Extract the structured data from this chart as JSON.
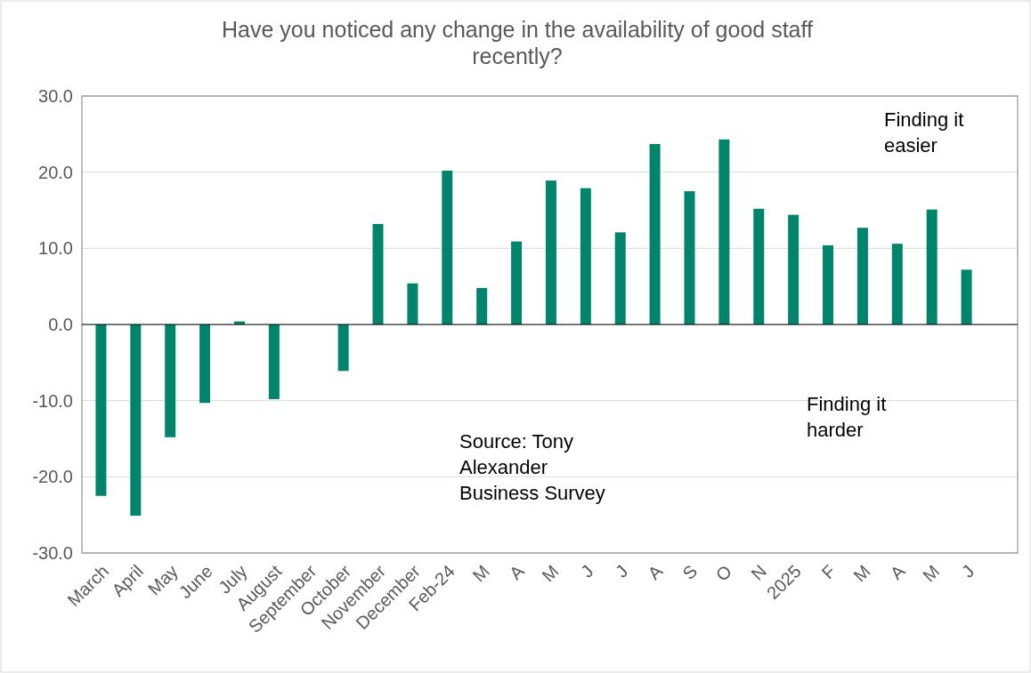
{
  "chart_data": {
    "type": "bar",
    "title": "Have you noticed any change in the availability of good staff recently?",
    "categories": [
      "March",
      "April",
      "May",
      "June",
      "July",
      "August",
      "September",
      "October",
      "November",
      "December",
      "Feb-24",
      "M",
      "A",
      "M",
      "J",
      "J",
      "A",
      "S",
      "O",
      "N",
      "2025",
      "F",
      "M",
      "A",
      "M",
      "J"
    ],
    "values": [
      -22.5,
      -25.1,
      -14.8,
      -10.3,
      0.4,
      -9.8,
      null,
      -6.1,
      13.2,
      5.4,
      20.2,
      4.8,
      10.9,
      18.9,
      17.9,
      12.1,
      23.7,
      17.5,
      24.3,
      15.2,
      14.4,
      10.4,
      12.7,
      10.6,
      15.1,
      7.2
    ],
    "color": "#00846b",
    "ylim": [
      -30,
      30
    ],
    "yticks": [
      {
        "value": -30,
        "label": "-30.0"
      },
      {
        "value": -20,
        "label": "-20.0"
      },
      {
        "value": -10,
        "label": "-10.0"
      },
      {
        "value": 0,
        "label": "0.0"
      },
      {
        "value": 10,
        "label": "10.0"
      },
      {
        "value": 20,
        "label": "20.0"
      },
      {
        "value": 30,
        "label": "30.0"
      }
    ],
    "grid": "y",
    "annotations": [
      "Finding it easier",
      "Finding it harder",
      "Source: Tony Alexander Business Survey"
    ]
  }
}
